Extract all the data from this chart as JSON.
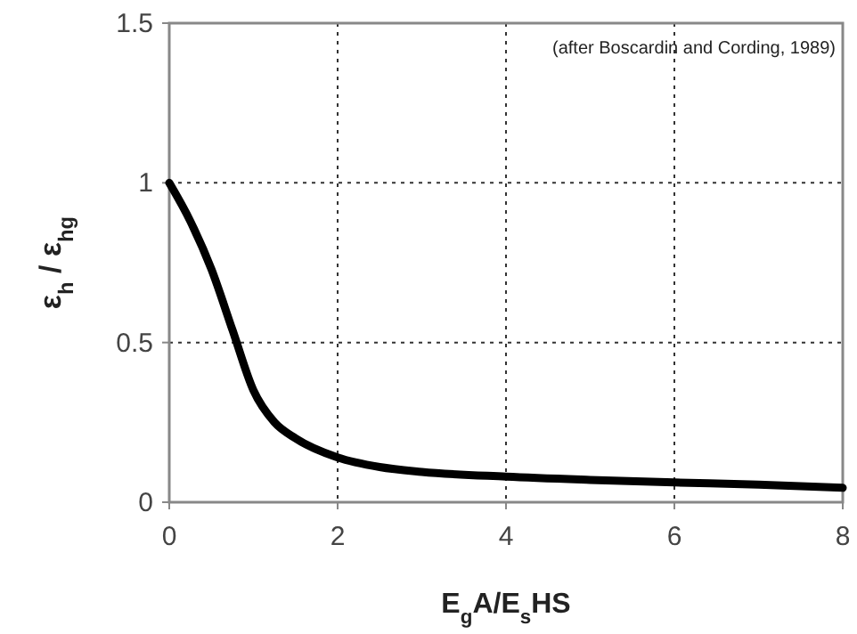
{
  "chart_data": {
    "type": "line",
    "xlabel": "E$_{g}$A/E$_{s}$HS",
    "ylabel": "ε$_{h}$ / ε$_{hg}$",
    "annotations": [
      "(after Boscardin and Cording, 1989)"
    ],
    "x": [
      0,
      0.25,
      0.5,
      0.75,
      1,
      1.25,
      1.5,
      2,
      2.5,
      3,
      4,
      5,
      6,
      7,
      8
    ],
    "series": [
      {
        "color": "#000000",
        "values": [
          1,
          0.88,
          0.73,
          0.54,
          0.35,
          0.25,
          0.2,
          0.14,
          0.11,
          0.095,
          0.08,
          0.07,
          0.062,
          0.055,
          0.045
        ]
      }
    ],
    "xlim": [
      0,
      8
    ],
    "ylim": [
      0,
      1.5
    ],
    "xticks": [
      0,
      2,
      4,
      6,
      8
    ],
    "yticks": [
      0,
      0.5,
      1,
      1.5
    ],
    "grid": true,
    "line_style": "solid",
    "marker": "none"
  }
}
